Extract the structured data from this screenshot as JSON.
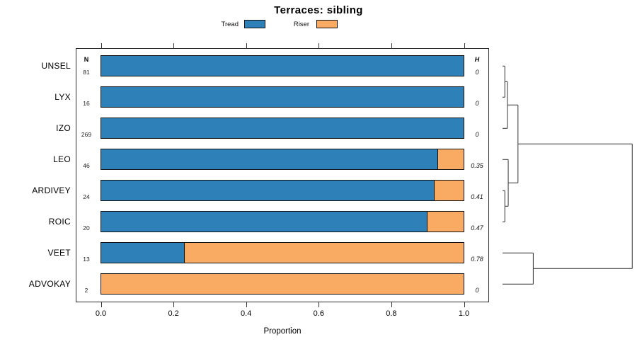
{
  "title": "Terraces: sibling",
  "legend": {
    "items": [
      {
        "label": "Tread",
        "color": "#2E81B8"
      },
      {
        "label": "Riser",
        "color": "#F9AB63"
      }
    ]
  },
  "table": {
    "n_header": "N",
    "h_header": "H"
  },
  "x_axis": {
    "label": "Proportion",
    "ticks": [
      "0.0",
      "0.2",
      "0.4",
      "0.6",
      "0.8",
      "1.0"
    ],
    "min": 0,
    "max": 1
  },
  "rows": [
    {
      "label": "UNSEL",
      "n": "81",
      "h": "0"
    },
    {
      "label": "LYX",
      "n": "16",
      "h": "0"
    },
    {
      "label": "IZO",
      "n": "269",
      "h": "0"
    },
    {
      "label": "LEO",
      "n": "46",
      "h": "0.35"
    },
    {
      "label": "ARDIVEY",
      "n": "24",
      "h": "0.41"
    },
    {
      "label": "ROIC",
      "n": "20",
      "h": "0.47"
    },
    {
      "label": "VEET",
      "n": "13",
      "h": "0.78"
    },
    {
      "label": "ADVOKAY",
      "n": "2",
      "h": "0"
    }
  ],
  "chart_data": {
    "type": "bar",
    "orientation": "horizontal",
    "stacked": true,
    "title": "Terraces: sibling",
    "xlabel": "Proportion",
    "xlim": [
      0,
      1
    ],
    "grid": false,
    "legend_position": "top",
    "categories": [
      "UNSEL",
      "LYX",
      "IZO",
      "LEO",
      "ARDIVEY",
      "ROIC",
      "VEET",
      "ADVOKAY"
    ],
    "series": [
      {
        "name": "Tread",
        "color": "#2E81B8",
        "values": [
          1.0,
          1.0,
          1.0,
          0.93,
          0.92,
          0.9,
          0.23,
          0.0
        ]
      },
      {
        "name": "Riser",
        "color": "#F9AB63",
        "values": [
          0.0,
          0.0,
          0.0,
          0.07,
          0.08,
          0.1,
          0.77,
          1.0
        ]
      }
    ],
    "counts_N": [
      81,
      16,
      269,
      46,
      24,
      20,
      13,
      2
    ],
    "entropy_H": [
      0,
      0,
      0,
      0.35,
      0.41,
      0.47,
      0.78,
      0
    ],
    "dendrogram": {
      "side": "right",
      "leaves": [
        "UNSEL",
        "LYX",
        "IZO",
        "LEO",
        "ARDIVEY",
        "ROIC",
        "VEET",
        "ADVOKAY"
      ],
      "merges": [
        {
          "id": "m1",
          "children": [
            "UNSEL",
            "LYX"
          ],
          "height": 0.018
        },
        {
          "id": "m2",
          "children": [
            "m1",
            "IZO"
          ],
          "height": 0.038
        },
        {
          "id": "m3",
          "children": [
            "ARDIVEY",
            "ROIC"
          ],
          "height": 0.018
        },
        {
          "id": "m4",
          "children": [
            "LEO",
            "m3"
          ],
          "height": 0.044
        },
        {
          "id": "m5",
          "children": [
            "m2",
            "m4"
          ],
          "height": 0.119
        },
        {
          "id": "m6",
          "children": [
            "VEET",
            "ADVOKAY"
          ],
          "height": 0.237
        },
        {
          "id": "root",
          "children": [
            "m5",
            "m6"
          ],
          "height": 1.0
        }
      ]
    }
  }
}
